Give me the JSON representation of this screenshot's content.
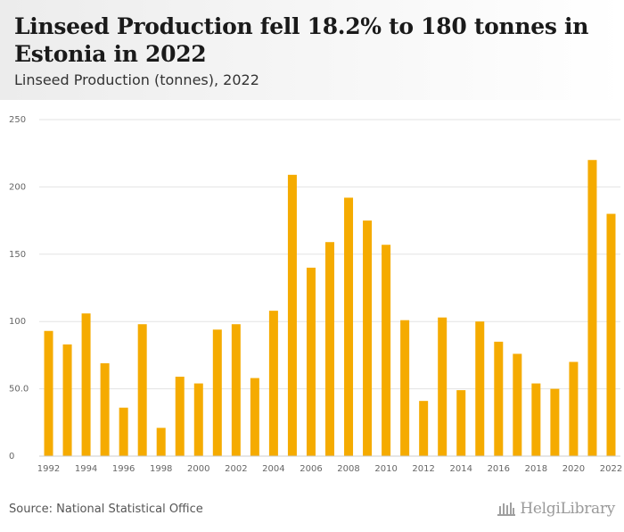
{
  "header": {
    "title": "Linseed Production fell 18.2% to 180 tonnes in Estonia in 2022",
    "subtitle": "Linseed Production (tonnes), 2022"
  },
  "footer": {
    "source": "Source: National Statistical Office",
    "logo_text": "HelgiLibrary"
  },
  "colors": {
    "bar": "#f5ab00",
    "grid": "#e3e3e3",
    "tick_text": "#666666"
  },
  "chart_data": {
    "type": "bar",
    "title": "Linseed Production fell 18.2% to 180 tonnes in Estonia in 2022",
    "subtitle": "Linseed Production (tonnes), 2022",
    "xlabel": "",
    "ylabel": "",
    "ylim": [
      0,
      250
    ],
    "y_ticks": [
      "0",
      "50.0",
      "100",
      "150",
      "200",
      "250"
    ],
    "x_tick_labels": [
      "1992",
      "1994",
      "1996",
      "1998",
      "2000",
      "2002",
      "2004",
      "2006",
      "2008",
      "2010",
      "2012",
      "2014",
      "2016",
      "2018",
      "2020",
      "2022"
    ],
    "grid": true,
    "categories": [
      "1992",
      "1993",
      "1994",
      "1995",
      "1996",
      "1997",
      "1998",
      "1999",
      "2000",
      "2001",
      "2002",
      "2003",
      "2004",
      "2005",
      "2006",
      "2007",
      "2008",
      "2009",
      "2010",
      "2011",
      "2012",
      "2013",
      "2014",
      "2015",
      "2016",
      "2017",
      "2018",
      "2019",
      "2020",
      "2021",
      "2022"
    ],
    "values": [
      93,
      83,
      106,
      69,
      36,
      98,
      21,
      59,
      54,
      94,
      98,
      58,
      108,
      209,
      140,
      159,
      192,
      175,
      157,
      101,
      41,
      103,
      49,
      100,
      85,
      76,
      54,
      50,
      70,
      220,
      180
    ]
  }
}
